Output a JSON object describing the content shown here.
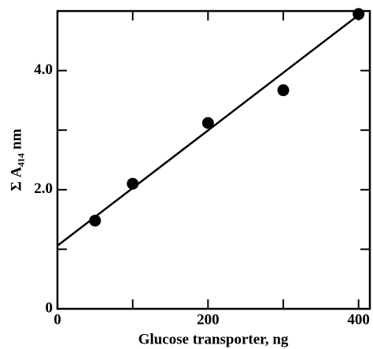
{
  "chart_data": {
    "type": "scatter",
    "x_label": "Glucose transporter, ng",
    "y_label": "Σ A₄₁₄ nm",
    "xlim": [
      0,
      415
    ],
    "ylim": [
      0,
      5
    ],
    "xticks": [
      0,
      200,
      400
    ],
    "xminor": [
      100,
      300
    ],
    "yticks": [
      0,
      {
        "value": 2,
        "label": "2.0"
      },
      {
        "value": 4,
        "label": "4.0"
      }
    ],
    "yminor": [
      1,
      3
    ],
    "color": "#000000",
    "series": [
      {
        "x": [
          50,
          100,
          200,
          300,
          400
        ],
        "values": [
          1.48,
          2.1,
          3.12,
          3.67,
          4.95
        ]
      },
      {
        "type": "line",
        "x": [
          0,
          407
        ],
        "values": [
          1.06,
          5.0
        ]
      }
    ]
  }
}
